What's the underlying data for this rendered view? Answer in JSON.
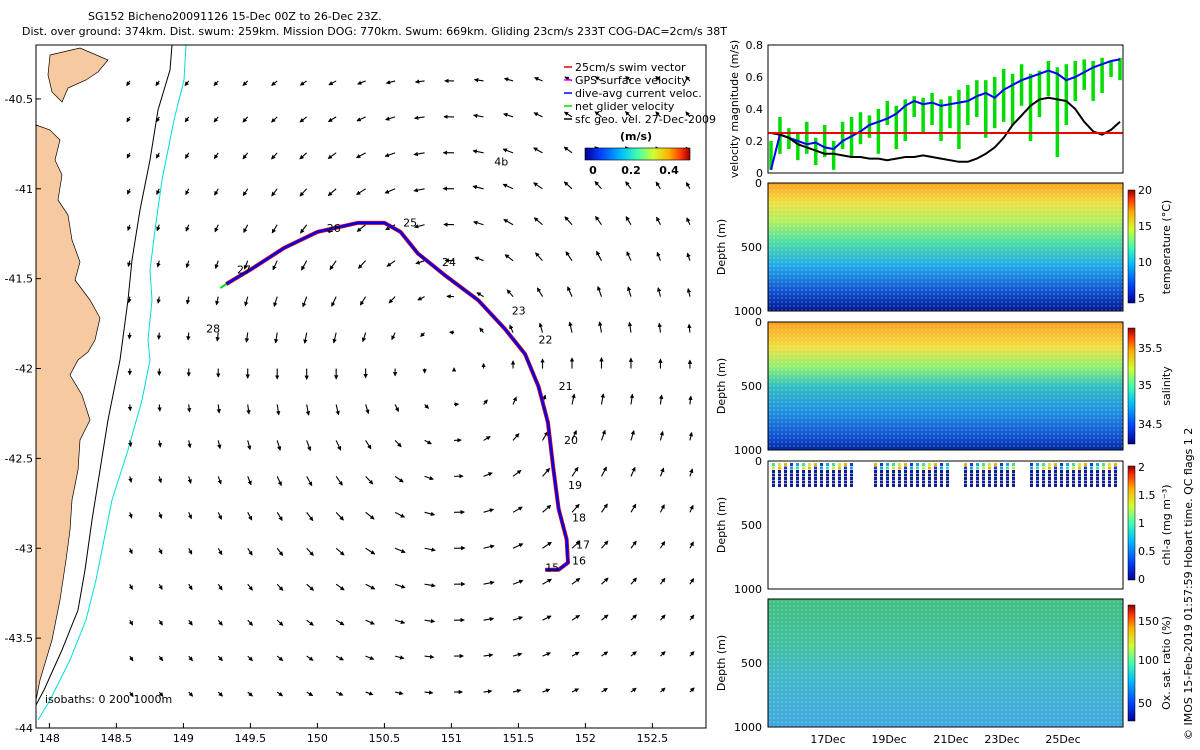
{
  "header": {
    "title": "SG152 Bicheno20091126 15-Dec 00Z to 26-Dec 23Z.",
    "subtitle": "Dist. over ground: 374km. Dist. swum: 259km. Mission DOG: 770km. Swum: 669km. Gliding 23cm/s 233T COG-DAC=2cm/s 38T"
  },
  "footer_note": "© IMOS 15-Feb-2019 01:57:59 Hobart time. QC flags 1  2",
  "colors": {
    "land": "#f7c9a0",
    "swim_vector": "#e00000",
    "gps_velocity": "#ff00ff",
    "dac_velocity": "#0000ff",
    "net_velocity": "#00dd00",
    "geo_velocity": "#000000",
    "isobath_shallow": "#00dddd",
    "isobath_deep": "#000000",
    "threshold_line": "#ee0000"
  },
  "chart_data": [
    {
      "type": "map",
      "name": "glider-track-map",
      "x_ticks": [
        "148",
        "148.5",
        "149",
        "149.5",
        "150",
        "150.5",
        "151",
        "151.5",
        "152",
        "152.5"
      ],
      "y_ticks": [
        "-40.5",
        "-41",
        "-41.5",
        "-42",
        "-42.5",
        "-43",
        "-43.5",
        "-44"
      ],
      "xlim": [
        147.9,
        152.9
      ],
      "ylim": [
        -44.0,
        -40.2
      ],
      "legend": [
        {
          "label": "25cm/s swim vector",
          "color_key": "swim_vector"
        },
        {
          "label": "GPS surface velocity",
          "color_key": "gps_velocity"
        },
        {
          "label": "dive-avg current veloc.",
          "color_key": "dac_velocity"
        },
        {
          "label": "net glider velocity",
          "color_key": "net_velocity"
        },
        {
          "label": "sfc geo. vel. 27-Dec-2009",
          "color_key": "geo_velocity"
        }
      ],
      "colorbar": {
        "label": "(m/s)",
        "ticks": [
          "0",
          "0.2",
          "0.4"
        ],
        "range": [
          0,
          0.5
        ]
      },
      "isobaths_label": "isobaths: 0   200   1000m",
      "track": [
        {
          "lon": 149.32,
          "lat": -41.53
        },
        {
          "lon": 149.5,
          "lat": -41.45
        },
        {
          "lon": 149.75,
          "lat": -41.33
        },
        {
          "lon": 150.0,
          "lat": -41.24
        },
        {
          "lon": 150.3,
          "lat": -41.19
        },
        {
          "lon": 150.5,
          "lat": -41.19
        },
        {
          "lon": 150.62,
          "lat": -41.24
        },
        {
          "lon": 150.75,
          "lat": -41.36
        },
        {
          "lon": 150.95,
          "lat": -41.48
        },
        {
          "lon": 151.2,
          "lat": -41.62
        },
        {
          "lon": 151.4,
          "lat": -41.78
        },
        {
          "lon": 151.55,
          "lat": -41.92
        },
        {
          "lon": 151.65,
          "lat": -42.1
        },
        {
          "lon": 151.72,
          "lat": -42.3
        },
        {
          "lon": 151.76,
          "lat": -42.55
        },
        {
          "lon": 151.8,
          "lat": -42.78
        },
        {
          "lon": 151.86,
          "lat": -42.95
        },
        {
          "lon": 151.87,
          "lat": -43.08
        },
        {
          "lon": 151.8,
          "lat": -43.12
        },
        {
          "lon": 151.7,
          "lat": -43.12
        }
      ],
      "day_labels": [
        {
          "text": "15",
          "lon": 151.7,
          "lat": -43.13
        },
        {
          "text": "16",
          "lon": 151.9,
          "lat": -43.09
        },
        {
          "text": "17",
          "lon": 151.93,
          "lat": -43.0
        },
        {
          "text": "18",
          "lon": 151.9,
          "lat": -42.85
        },
        {
          "text": "19",
          "lon": 151.87,
          "lat": -42.67
        },
        {
          "text": "20",
          "lon": 151.84,
          "lat": -42.42
        },
        {
          "text": "21",
          "lon": 151.8,
          "lat": -42.12
        },
        {
          "text": "22",
          "lon": 151.65,
          "lat": -41.86
        },
        {
          "text": "23",
          "lon": 151.45,
          "lat": -41.7
        },
        {
          "text": "24",
          "lon": 150.93,
          "lat": -41.43
        },
        {
          "text": "25",
          "lon": 150.64,
          "lat": -41.21
        },
        {
          "text": "26",
          "lon": 150.07,
          "lat": -41.24
        },
        {
          "text": "27",
          "lon": 149.4,
          "lat": -41.47
        },
        {
          "text": "28",
          "lon": 149.17,
          "lat": -41.8
        },
        {
          "text": "4b",
          "lon": 151.32,
          "lat": -40.87
        }
      ]
    },
    {
      "type": "line",
      "name": "velocity-magnitude",
      "ylabel": "velocity magnitude (m/s)",
      "ylim": [
        0,
        0.8
      ],
      "y_ticks": [
        "0",
        "0.2",
        "0.4",
        "0.6",
        "0.8"
      ],
      "threshold": 0.25,
      "series": [
        {
          "name": "dive-avg current veloc.",
          "color_key": "dac_velocity",
          "values": [
            0.02,
            0.24,
            0.22,
            0.2,
            0.18,
            0.19,
            0.16,
            0.15,
            0.2,
            0.23,
            0.26,
            0.3,
            0.32,
            0.34,
            0.37,
            0.42,
            0.45,
            0.43,
            0.44,
            0.42,
            0.43,
            0.44,
            0.45,
            0.48,
            0.5,
            0.47,
            0.52,
            0.55,
            0.58,
            0.6,
            0.62,
            0.64,
            0.62,
            0.58,
            0.6,
            0.63,
            0.66,
            0.68,
            0.7,
            0.71
          ]
        },
        {
          "name": "sfc geo. vel.",
          "color_key": "geo_velocity",
          "values": [
            0.25,
            0.24,
            0.22,
            0.18,
            0.16,
            0.14,
            0.12,
            0.12,
            0.11,
            0.1,
            0.1,
            0.09,
            0.09,
            0.08,
            0.09,
            0.1,
            0.1,
            0.11,
            0.1,
            0.09,
            0.08,
            0.07,
            0.07,
            0.09,
            0.12,
            0.16,
            0.22,
            0.3,
            0.36,
            0.42,
            0.46,
            0.47,
            0.46,
            0.45,
            0.4,
            0.32,
            0.26,
            0.24,
            0.27,
            0.32
          ]
        }
      ],
      "net_glider_range": {
        "color_key": "net_velocity",
        "low": [
          0.02,
          0.12,
          0.15,
          0.08,
          0.12,
          0.05,
          0.1,
          0.02,
          0.15,
          0.1,
          0.18,
          0.22,
          0.12,
          0.3,
          0.15,
          0.2,
          0.35,
          0.25,
          0.3,
          0.2,
          0.28,
          0.15,
          0.3,
          0.35,
          0.22,
          0.28,
          0.32,
          0.3,
          0.42,
          0.2,
          0.35,
          0.48,
          0.1,
          0.3,
          0.45,
          0.52,
          0.45,
          0.5,
          0.6,
          0.58
        ],
        "high": [
          0.2,
          0.35,
          0.28,
          0.25,
          0.32,
          0.22,
          0.3,
          0.2,
          0.32,
          0.35,
          0.38,
          0.36,
          0.4,
          0.45,
          0.42,
          0.46,
          0.48,
          0.47,
          0.5,
          0.46,
          0.48,
          0.52,
          0.55,
          0.58,
          0.58,
          0.6,
          0.65,
          0.62,
          0.68,
          0.62,
          0.64,
          0.7,
          0.66,
          0.68,
          0.7,
          0.71,
          0.7,
          0.72,
          0.7,
          0.72
        ]
      }
    },
    {
      "type": "heatmap",
      "name": "temperature-section",
      "ylabel": "Depth (m)",
      "y_ticks": [
        "0",
        "500",
        "1000"
      ],
      "colorbar_label": "temperature (°C)",
      "colorbar_ticks": [
        "5",
        "10",
        "15",
        "20"
      ]
    },
    {
      "type": "heatmap",
      "name": "salinity-section",
      "ylabel": "Depth (m)",
      "y_ticks": [
        "0",
        "500",
        "1000"
      ],
      "colorbar_label": "salinity",
      "colorbar_ticks": [
        "34.5",
        "35",
        "35.5"
      ]
    },
    {
      "type": "heatmap",
      "name": "chlorophyll-section",
      "ylabel": "Depth (m)",
      "y_ticks": [
        "0",
        "500",
        "1000"
      ],
      "colorbar_label": "chl-a (mg m⁻³)",
      "colorbar_ticks": [
        "0",
        "0.5",
        "1",
        "1.5",
        "2"
      ]
    },
    {
      "type": "heatmap",
      "name": "oxygen-section",
      "ylabel": "Depth (m)",
      "y_ticks": [
        "0",
        "500",
        "1000"
      ],
      "colorbar_label": "Ox. sat. ratio (%)",
      "colorbar_ticks": [
        "50",
        "100",
        "150"
      ],
      "x_ticks": [
        "17Dec",
        "19Dec",
        "21Dec",
        "23Dec",
        "25Dec"
      ]
    }
  ]
}
